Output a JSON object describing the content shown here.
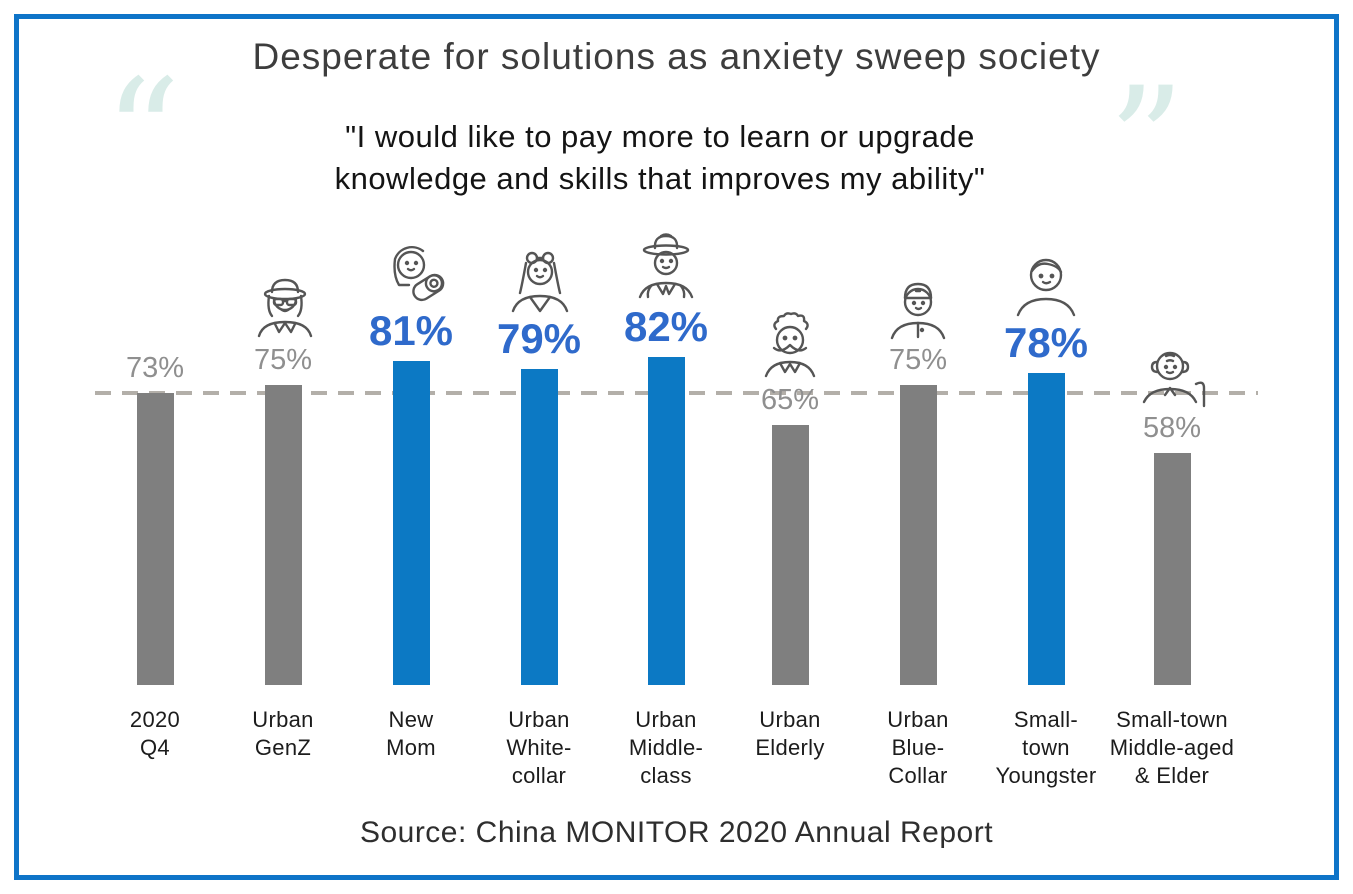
{
  "frame": {
    "border_color": "#0e74c8"
  },
  "title": "Desperate for solutions as anxiety sweep society",
  "quote": {
    "line1": "\"I would like to pay more to learn or upgrade",
    "line2": "knowledge and skills that improves my ability\"",
    "open_mark": "“",
    "close_mark": "”",
    "mark_color": "#d9ece8"
  },
  "chart_data": {
    "type": "bar",
    "title": "Desperate for solutions as anxiety sweep society",
    "categories": [
      "2020 Q4",
      "Urban GenZ",
      "New Mom",
      "Urban White-collar",
      "Urban Middle-class",
      "Urban Elderly",
      "Urban Blue-Collar",
      "Small-town Youngster",
      "Small-town Middle-aged & Elder"
    ],
    "category_lines": [
      [
        "2020",
        "Q4"
      ],
      [
        "Urban",
        "GenZ"
      ],
      [
        "New",
        "Mom"
      ],
      [
        "Urban",
        "White-",
        "collar"
      ],
      [
        "Urban",
        "Middle-",
        "class"
      ],
      [
        "Urban",
        "Elderly"
      ],
      [
        "Urban",
        "Blue-",
        "Collar"
      ],
      [
        "Small-",
        "town",
        "Youngster"
      ],
      [
        "Small-town",
        "Middle-aged",
        "& Elder"
      ]
    ],
    "values": [
      73,
      75,
      81,
      79,
      82,
      65,
      75,
      78,
      58
    ],
    "unit": "%",
    "value_labels": [
      "73%",
      "75%",
      "81%",
      "79%",
      "82%",
      "65%",
      "75%",
      "78%",
      "58%"
    ],
    "highlighted": [
      false,
      false,
      true,
      true,
      true,
      false,
      false,
      true,
      false
    ],
    "icons": [
      null,
      "genz-icon",
      "new-mom-icon",
      "white-collar-woman-icon",
      "middle-class-man-icon",
      "elderly-man-icon",
      "blue-collar-man-icon",
      "youngster-icon",
      "small-town-elder-icon"
    ],
    "benchmark_value": 73,
    "ylim": [
      0,
      100
    ],
    "grid": false,
    "legend": false,
    "colors": {
      "bar_highlight": "#0c79c4",
      "bar_default": "#7f7f7f",
      "label_highlight": "#2f6acb",
      "label_default": "#8f8f8f",
      "dashed_line": "#b3afa9"
    }
  },
  "source": "Source: China MONITOR 2020 Annual Report"
}
